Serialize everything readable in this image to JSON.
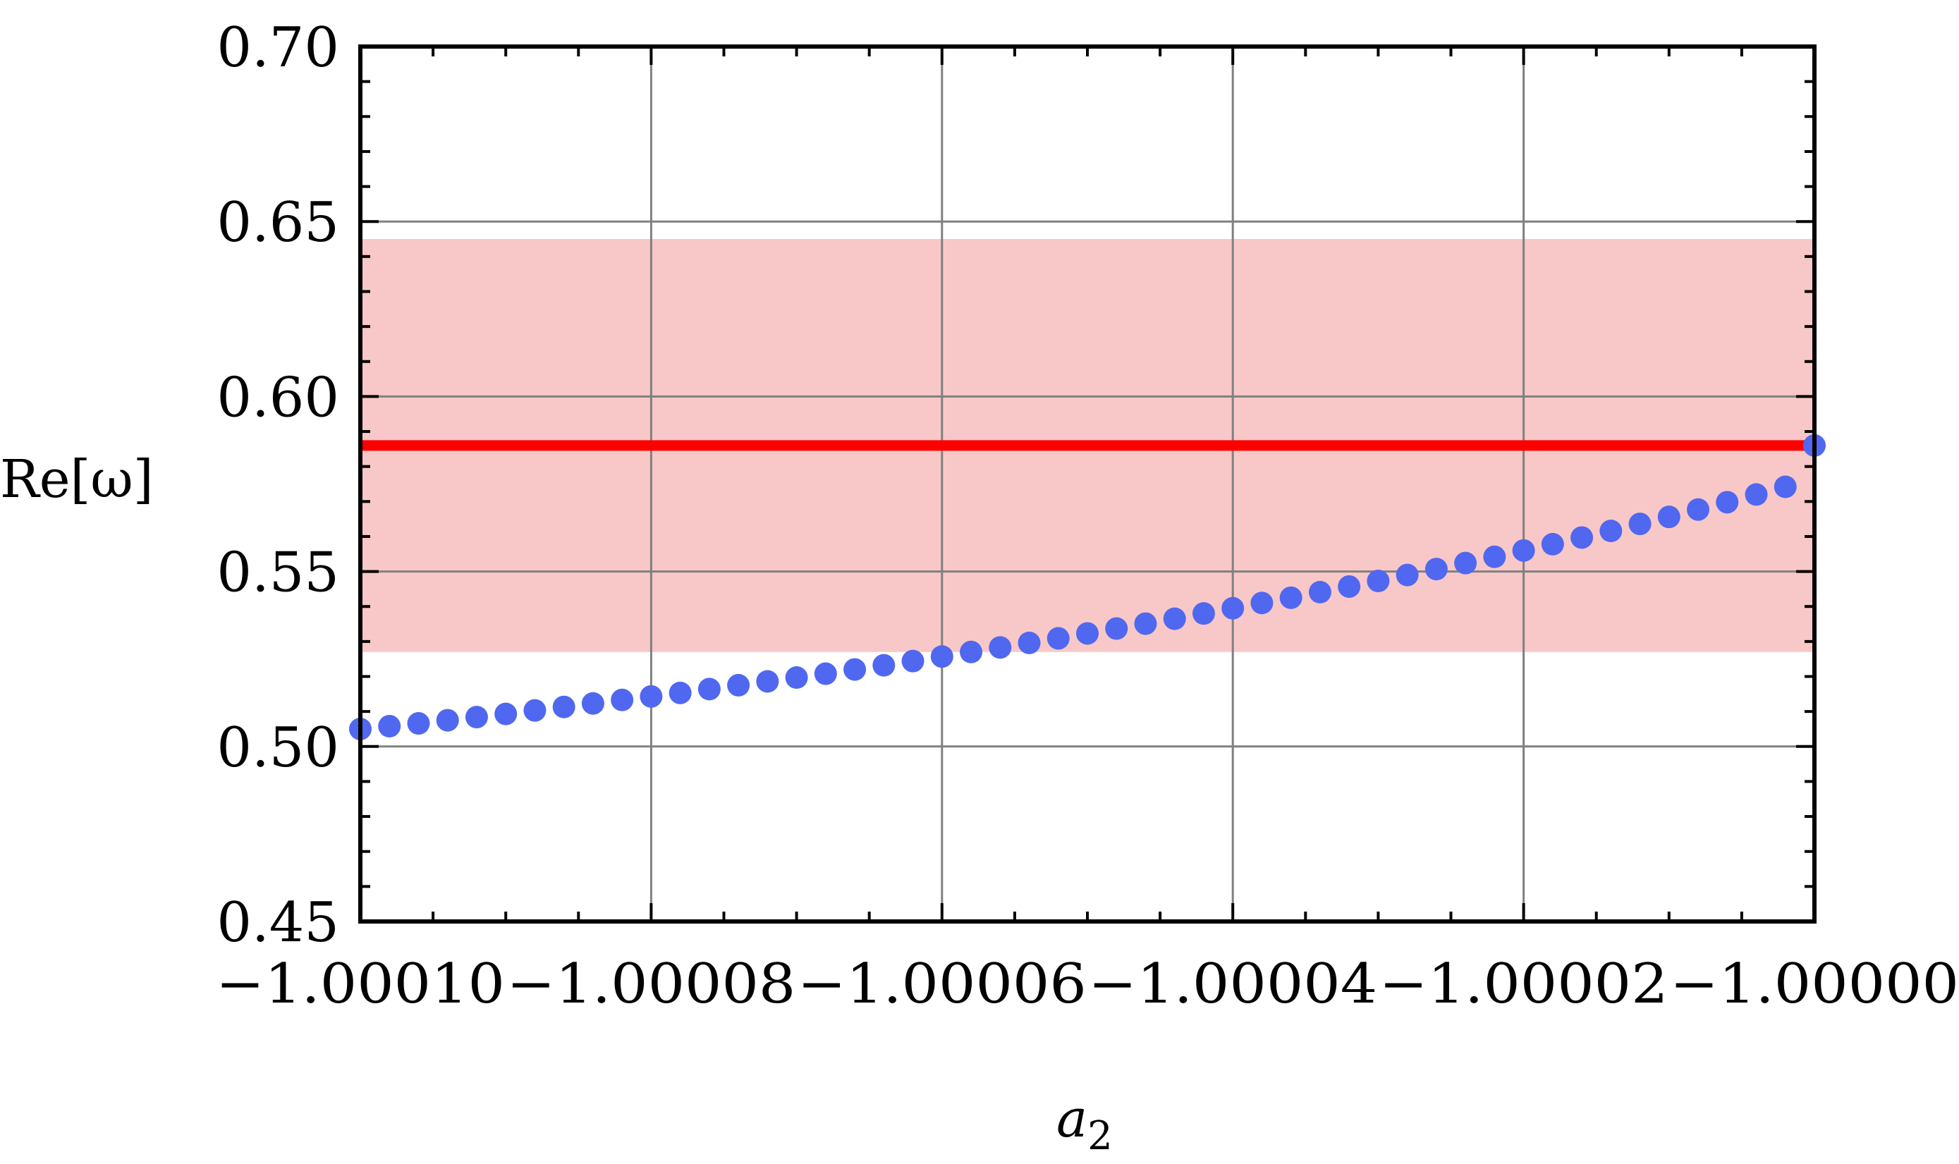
{
  "chart_data": {
    "type": "scatter",
    "title": "",
    "xlabel": "a",
    "xlabel_subscript": "2",
    "ylabel": "Re[ω]",
    "xlim": [
      -1.0001,
      -1.0
    ],
    "ylim": [
      0.45,
      0.7
    ],
    "xticks": [
      -1.0001,
      -1.00008,
      -1.00006,
      -1.00004,
      -1.00002,
      -1.0
    ],
    "xtick_labels": [
      "−1.00010",
      "−1.00008",
      "−1.00006",
      "−1.00004",
      "−1.00002",
      "−1.00000"
    ],
    "yticks": [
      0.45,
      0.5,
      0.55,
      0.6,
      0.65,
      0.7
    ],
    "ytick_labels": [
      "0.45",
      "0.50",
      "0.55",
      "0.60",
      "0.65",
      "0.70"
    ],
    "grid": true,
    "series": [
      {
        "values_x": [
          -1.0001,
          -1.000098,
          -1.000096,
          -1.000094,
          -1.000092,
          -1.00009,
          -1.000088,
          -1.000086,
          -1.000084,
          -1.000082,
          -1.00008,
          -1.000078,
          -1.000076,
          -1.000074,
          -1.000072,
          -1.00007,
          -1.000068,
          -1.000066,
          -1.000064,
          -1.000062,
          -1.00006,
          -1.000058,
          -1.000056,
          -1.000054,
          -1.000052,
          -1.00005,
          -1.000048,
          -1.000046,
          -1.000044,
          -1.000042,
          -1.00004,
          -1.000038,
          -1.000036,
          -1.000034,
          -1.000032,
          -1.00003,
          -1.000028,
          -1.000026,
          -1.000024,
          -1.000022,
          -1.00002,
          -1.000018,
          -1.000016,
          -1.000014,
          -1.000012,
          -1.00001,
          -1.000008,
          -1.000006,
          -1.000004,
          -1.000002,
          -1.0
        ],
        "values_y": [
          0.505,
          0.5058,
          0.5066,
          0.5075,
          0.5084,
          0.5093,
          0.5103,
          0.5113,
          0.5123,
          0.5133,
          0.5143,
          0.5153,
          0.5164,
          0.5175,
          0.5186,
          0.5197,
          0.5208,
          0.522,
          0.5232,
          0.5244,
          0.5257,
          0.527,
          0.5283,
          0.5296,
          0.5309,
          0.5323,
          0.5337,
          0.5351,
          0.5365,
          0.538,
          0.5395,
          0.541,
          0.5425,
          0.5441,
          0.5457,
          0.5473,
          0.549,
          0.5507,
          0.5524,
          0.5542,
          0.556,
          0.5578,
          0.5597,
          0.5616,
          0.5636,
          0.5656,
          0.5677,
          0.5698,
          0.572,
          0.5742,
          0.586
        ],
        "color": "#5068f0",
        "marker": "circle"
      }
    ],
    "reference_line": {
      "y": 0.586,
      "color": "#ff0000"
    },
    "band": {
      "y_min": 0.527,
      "y_max": 0.645,
      "color": "#f8c8c8"
    }
  }
}
